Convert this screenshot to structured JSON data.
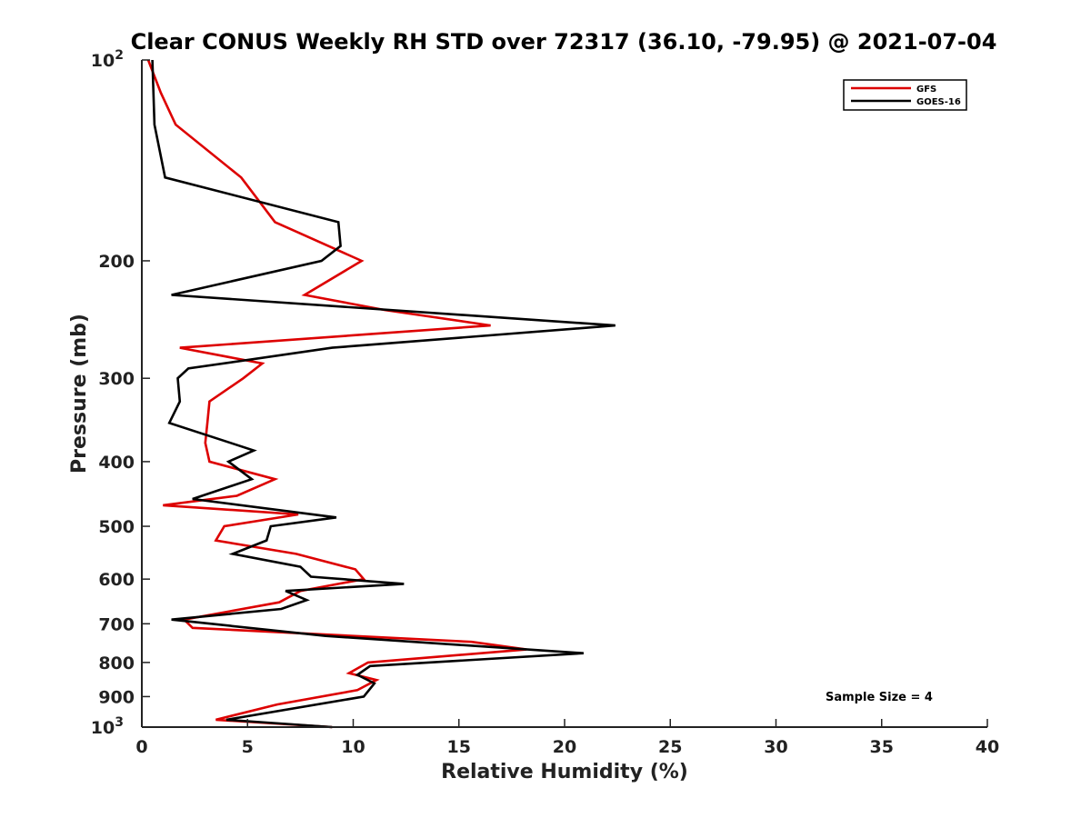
{
  "chart_data": {
    "type": "line",
    "title": "Clear CONUS Weekly RH STD over 72317 (36.10, -79.95) @ 2021-07-04",
    "xlabel": "Relative Humidity (%)",
    "ylabel": "Pressure (mb)",
    "xlim": [
      0,
      40
    ],
    "ylim": [
      100,
      1000
    ],
    "y_scale": "log",
    "y_reversed": true,
    "grid": false,
    "legend_position": "top-right",
    "x_ticks": [
      "0",
      "5",
      "10",
      "15",
      "20",
      "25",
      "30",
      "35",
      "40"
    ],
    "y_ticks": [
      {
        "value": 100,
        "label": "10",
        "sup": "2"
      },
      {
        "value": 200,
        "label": "200"
      },
      {
        "value": 300,
        "label": "300"
      },
      {
        "value": 400,
        "label": "400"
      },
      {
        "value": 500,
        "label": "500"
      },
      {
        "value": 600,
        "label": "600"
      },
      {
        "value": 700,
        "label": "700"
      },
      {
        "value": 800,
        "label": "800"
      },
      {
        "value": 900,
        "label": "900"
      },
      {
        "value": 1000,
        "label": "10",
        "sup": "3"
      }
    ],
    "annotation": "Sample Size = 4",
    "series": [
      {
        "name": "GFS",
        "color": "#dd0000",
        "points": [
          [
            0.3,
            100
          ],
          [
            0.9,
            112
          ],
          [
            1.6,
            125
          ],
          [
            4.7,
            150
          ],
          [
            6.3,
            175
          ],
          [
            10.4,
            200
          ],
          [
            7.7,
            225
          ],
          [
            11.5,
            237
          ],
          [
            16.5,
            250
          ],
          [
            1.8,
            270
          ],
          [
            5.7,
            285
          ],
          [
            4.8,
            300
          ],
          [
            3.2,
            325
          ],
          [
            3.1,
            350
          ],
          [
            3.0,
            375
          ],
          [
            3.2,
            400
          ],
          [
            6.3,
            425
          ],
          [
            4.5,
            450
          ],
          [
            1.0,
            465
          ],
          [
            7.4,
            480
          ],
          [
            3.9,
            500
          ],
          [
            3.5,
            525
          ],
          [
            7.3,
            550
          ],
          [
            10.1,
            580
          ],
          [
            10.5,
            600
          ],
          [
            7.5,
            625
          ],
          [
            6.5,
            650
          ],
          [
            2.0,
            690
          ],
          [
            2.4,
            710
          ],
          [
            15.6,
            745
          ],
          [
            18.2,
            765
          ],
          [
            10.7,
            800
          ],
          [
            9.8,
            830
          ],
          [
            11.1,
            850
          ],
          [
            10.2,
            880
          ],
          [
            6.4,
            925
          ],
          [
            3.5,
            975
          ],
          [
            9.0,
            1000
          ]
        ]
      },
      {
        "name": "GOES-16",
        "color": "#000000",
        "points": [
          [
            0.5,
            100
          ],
          [
            0.6,
            125
          ],
          [
            1.1,
            150
          ],
          [
            9.3,
            175
          ],
          [
            9.4,
            190
          ],
          [
            8.5,
            200
          ],
          [
            1.4,
            225
          ],
          [
            22.4,
            250
          ],
          [
            9.0,
            270
          ],
          [
            2.2,
            290
          ],
          [
            1.7,
            300
          ],
          [
            1.8,
            325
          ],
          [
            1.3,
            350
          ],
          [
            4.2,
            375
          ],
          [
            5.3,
            385
          ],
          [
            4.1,
            400
          ],
          [
            5.2,
            425
          ],
          [
            2.4,
            455
          ],
          [
            9.2,
            485
          ],
          [
            6.1,
            500
          ],
          [
            5.9,
            525
          ],
          [
            4.3,
            550
          ],
          [
            7.5,
            575
          ],
          [
            8.0,
            595
          ],
          [
            12.4,
            610
          ],
          [
            6.8,
            625
          ],
          [
            7.8,
            645
          ],
          [
            6.6,
            665
          ],
          [
            1.4,
            690
          ],
          [
            8.7,
            730
          ],
          [
            20.9,
            775
          ],
          [
            10.8,
            810
          ],
          [
            10.2,
            835
          ],
          [
            11.0,
            860
          ],
          [
            10.5,
            900
          ],
          [
            4.0,
            975
          ],
          [
            9.0,
            1000
          ]
        ]
      }
    ]
  }
}
